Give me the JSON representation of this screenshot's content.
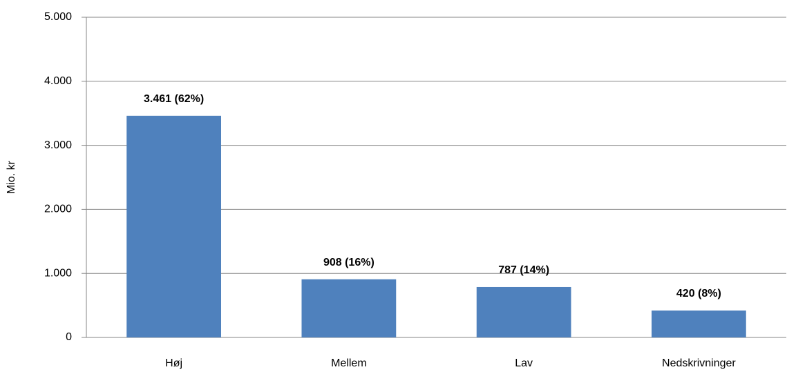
{
  "chart_data": {
    "type": "bar",
    "y_label": "Mio. kr",
    "categories": [
      "Høj",
      "Mellem",
      "Lav",
      "Nedskrivninger"
    ],
    "values": [
      3461,
      908,
      787,
      420
    ],
    "value_labels": [
      "3.461 (62%)",
      "908 (16%)",
      "787 (14%)",
      "420 (8%)"
    ],
    "color": "#4f81bd",
    "ylim": [
      0,
      5000
    ],
    "yticks": [
      0,
      {
        "value": 1000,
        "label": "1.000"
      },
      {
        "value": 2000,
        "label": "2.000"
      },
      {
        "value": 3000,
        "label": "3.000"
      },
      {
        "value": 4000,
        "label": "4.000"
      },
      {
        "value": 5000,
        "label": "5.000"
      }
    ],
    "grid": true
  }
}
